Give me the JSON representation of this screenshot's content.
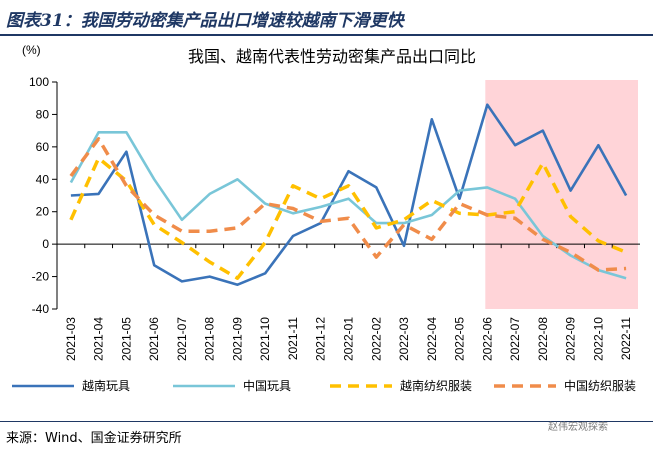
{
  "figure": {
    "title": "图表31：我国劳动密集产品出口增速较越南下滑更快",
    "source": "来源：Wind、国金证券研究所",
    "watermark": "赵伟宏观探索"
  },
  "chart_data": {
    "type": "line",
    "title": "我国、越南代表性劳动密集产品出口同比",
    "ylabel": "(%)",
    "ylim": [
      -40,
      100
    ],
    "yticks": [
      -40,
      -20,
      0,
      20,
      40,
      60,
      80,
      100
    ],
    "categories": [
      "2021-03",
      "2021-04",
      "2021-05",
      "2021-06",
      "2021-07",
      "2021-08",
      "2021-09",
      "2021-10",
      "2021-11",
      "2021-12",
      "2022-01",
      "2022-02",
      "2022-03",
      "2022-04",
      "2022-05",
      "2022-06",
      "2022-07",
      "2022-08",
      "2022-09",
      "2022-10",
      "2022-11"
    ],
    "shaded_range": [
      "2022-06",
      "2022-11"
    ],
    "legend_position": "bottom",
    "colors": {
      "vn_toys": "#3a73b9",
      "cn_toys": "#79c6d8",
      "vn_textile": "#ffc000",
      "cn_textile": "#f08c4a",
      "shade": "#ffd4d8"
    },
    "series": [
      {
        "name": "越南玩具",
        "style": "solid",
        "color_key": "vn_toys",
        "values": [
          30,
          31,
          57,
          -13,
          -23,
          -20,
          -25,
          -18,
          5,
          13,
          45,
          35,
          -1,
          77,
          28,
          86,
          61,
          70,
          33,
          61,
          30
        ]
      },
      {
        "name": "中国玩具",
        "style": "solid",
        "color_key": "cn_toys",
        "values": [
          38,
          69,
          69,
          40,
          15,
          31,
          40,
          25,
          19,
          23,
          28,
          13,
          13,
          18,
          33,
          35,
          28,
          5,
          -7,
          -16,
          -21
        ]
      },
      {
        "name": "越南纺织服装",
        "style": "dashed",
        "color_key": "vn_textile",
        "values": [
          15,
          53,
          39,
          12,
          1,
          -11,
          -21,
          1,
          36,
          28,
          36,
          10,
          15,
          27,
          19,
          18,
          20,
          50,
          17,
          2,
          -5
        ]
      },
      {
        "name": "中国纺织服装",
        "style": "dashed",
        "color_key": "cn_textile",
        "values": [
          42,
          65,
          36,
          18,
          8,
          8,
          10,
          25,
          22,
          14,
          16,
          -8,
          12,
          3,
          25,
          18,
          16,
          3,
          -5,
          -16,
          -15
        ]
      }
    ]
  }
}
